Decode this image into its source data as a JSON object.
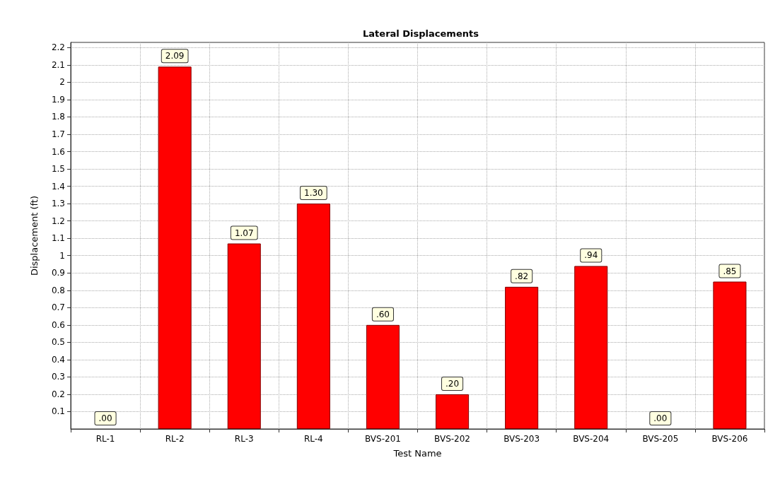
{
  "chart_data": {
    "type": "bar",
    "title": "Lateral Displacements",
    "xlabel": "Test Name",
    "ylabel": "Displacement (ft)",
    "categories": [
      "RL-1",
      "RL-2",
      "RL-3",
      "RL-4",
      "BVS-201",
      "BVS-202",
      "BVS-203",
      "BVS-204",
      "BVS-205",
      "BVS-206"
    ],
    "values": [
      0,
      2.09,
      1.07,
      1.3,
      0.6,
      0.2,
      0.82,
      0.94,
      0,
      0.85
    ],
    "value_labels": [
      ".00",
      "2.09",
      "1.07",
      "1.30",
      ".60",
      ".20",
      ".82",
      ".94",
      ".00",
      ".85"
    ],
    "color": "#ff0000",
    "ylim": [
      0,
      2.23
    ],
    "yticks": [
      0.1,
      0.2,
      0.3,
      0.4,
      0.5,
      0.6,
      0.7,
      0.8,
      0.9,
      1,
      1.1,
      1.2,
      1.3,
      1.4,
      1.5,
      1.6,
      1.7,
      1.8,
      1.9,
      2,
      2.1,
      2.2
    ],
    "grid": true
  }
}
